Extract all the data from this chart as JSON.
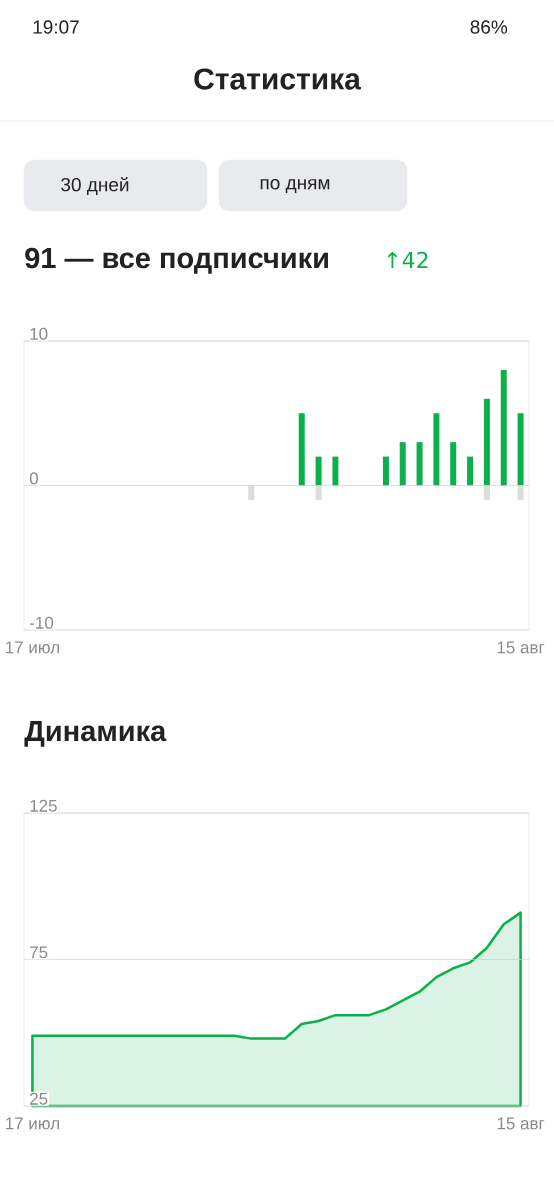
{
  "chart_data": [
    {
      "type": "bar",
      "title": "91 — все подписчики",
      "subtitle": "↑42",
      "annotations": [
        "19:07",
        "86%",
        "Статистика",
        "30 дней",
        "по дням"
      ],
      "categories": [
        "17 июл",
        null,
        null,
        null,
        null,
        null,
        null,
        null,
        null,
        null,
        null,
        null,
        null,
        null,
        null,
        null,
        null,
        null,
        null,
        null,
        null,
        null,
        null,
        null,
        null,
        null,
        null,
        null,
        null,
        "15 авг"
      ],
      "series": [
        {
          "color": "#0bb04a",
          "values": [
            0,
            0,
            0,
            0,
            0,
            0,
            0,
            0,
            0,
            0,
            0,
            0,
            0,
            0,
            0,
            0,
            5,
            2,
            2,
            0,
            0,
            2,
            3,
            3,
            5,
            3,
            2,
            6,
            8,
            5
          ]
        },
        {
          "color": "#dcdcdc",
          "values": [
            0,
            0,
            0,
            0,
            0,
            0,
            0,
            0,
            0,
            0,
            0,
            0,
            0,
            -1,
            0,
            0,
            0,
            -1,
            0,
            0,
            0,
            0,
            0,
            0,
            0,
            0,
            0,
            -1,
            0,
            -1
          ]
        }
      ],
      "stacked": true,
      "ylim": [
        -10,
        10
      ],
      "yticks": [
        -10,
        0,
        10
      ],
      "grid": "y"
    },
    {
      "type": "area",
      "title": "Динамика",
      "categories": [
        "17 июл",
        null,
        null,
        null,
        null,
        null,
        null,
        null,
        null,
        null,
        null,
        null,
        null,
        null,
        null,
        null,
        null,
        null,
        null,
        null,
        null,
        null,
        null,
        null,
        null,
        null,
        null,
        null,
        null,
        "15 авг"
      ],
      "values": [
        49,
        49,
        49,
        49,
        49,
        49,
        49,
        49,
        49,
        49,
        49,
        49,
        49,
        48,
        48,
        48,
        53,
        54,
        56,
        56,
        56,
        58,
        61,
        64,
        69,
        72,
        74,
        79,
        87,
        91
      ],
      "color": "#0bb04a",
      "ylim": [
        25,
        125
      ],
      "yticks": [
        25,
        75,
        125
      ],
      "grid": "y"
    }
  ]
}
